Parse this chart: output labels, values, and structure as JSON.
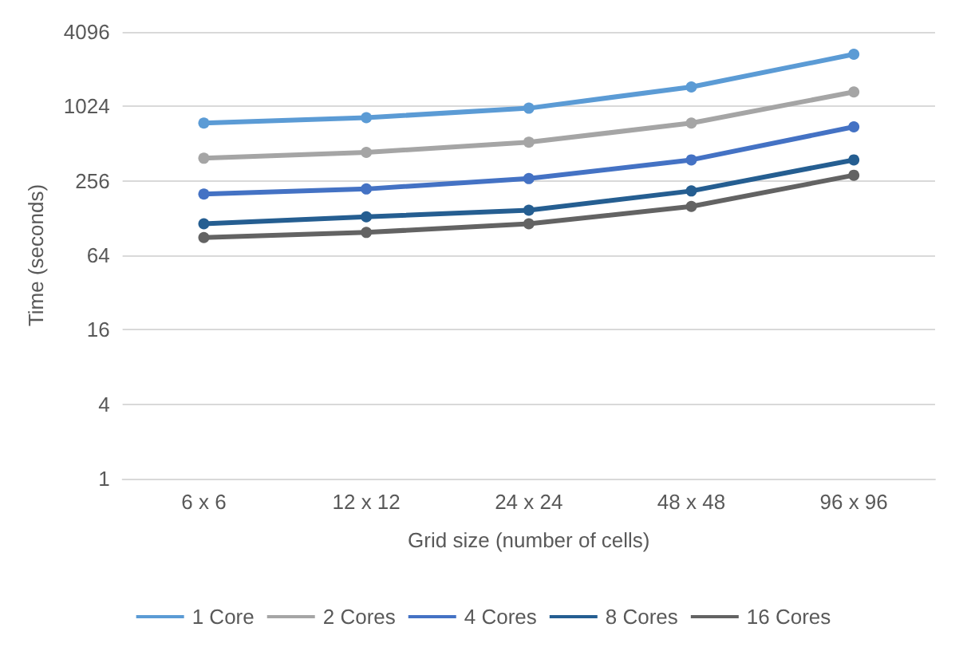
{
  "chart_data": {
    "type": "line",
    "xlabel": "Grid size (number of cells)",
    "ylabel": "Time (seconds)",
    "categories": [
      "6 x 6",
      "12 x 12",
      "24 x 24",
      "48 x 48",
      "96 x 96"
    ],
    "series": [
      {
        "name": "1 Core",
        "color": "#5b9bd5",
        "values": [
          750,
          830,
          990,
          1470,
          2700
        ]
      },
      {
        "name": "2 Cores",
        "color": "#a5a5a5",
        "values": [
          390,
          435,
          525,
          750,
          1340
        ]
      },
      {
        "name": "4 Cores",
        "color": "#4472c4",
        "values": [
          200,
          220,
          267,
          378,
          700
        ]
      },
      {
        "name": "8 Cores",
        "color": "#255e91",
        "values": [
          115,
          131,
          148,
          212,
          378
        ]
      },
      {
        "name": "16 Cores",
        "color": "#636363",
        "values": [
          89,
          98,
          115,
          159,
          284
        ]
      }
    ],
    "log": "y",
    "ylim": [
      1,
      4096
    ],
    "yticks": [
      1,
      4,
      16,
      64,
      256,
      1024,
      4096
    ],
    "grid": "y",
    "legend": "bottom",
    "marker": "circle",
    "line_style": "solid"
  }
}
